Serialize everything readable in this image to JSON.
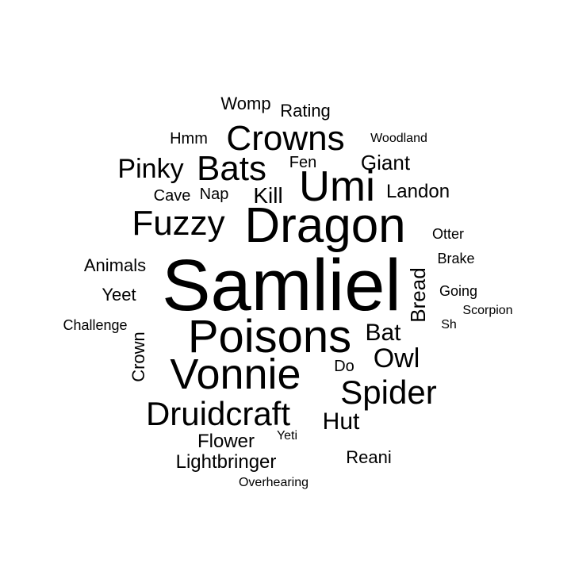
{
  "words": [
    {
      "text": "Samliel",
      "weight": 100
    },
    {
      "text": "Dragon",
      "weight": 78
    },
    {
      "text": "Poisons",
      "weight": 74
    },
    {
      "text": "Vonnie",
      "weight": 68
    },
    {
      "text": "Umi",
      "weight": 66
    },
    {
      "text": "Crowns",
      "weight": 58
    },
    {
      "text": "Bats",
      "weight": 56
    },
    {
      "text": "Fuzzy",
      "weight": 54
    },
    {
      "text": "Druidcraft",
      "weight": 52
    },
    {
      "text": "Spider",
      "weight": 52
    },
    {
      "text": "Pinky",
      "weight": 42
    },
    {
      "text": "Owl",
      "weight": 42
    },
    {
      "text": "Bat",
      "weight": 38
    },
    {
      "text": "Hut",
      "weight": 36
    },
    {
      "text": "Kill",
      "weight": 34
    },
    {
      "text": "Giant",
      "weight": 32
    },
    {
      "text": "Bread",
      "weight": 32
    },
    {
      "text": "Landon",
      "weight": 30
    },
    {
      "text": "Flower",
      "weight": 28
    },
    {
      "text": "Lightbringer",
      "weight": 28
    },
    {
      "text": "Reani",
      "weight": 28
    },
    {
      "text": "Animals",
      "weight": 26
    },
    {
      "text": "Womp",
      "weight": 26
    },
    {
      "text": "Rating",
      "weight": 26
    },
    {
      "text": "Crown",
      "weight": 26
    },
    {
      "text": "Yeet",
      "weight": 26
    },
    {
      "text": "Hmm",
      "weight": 24
    },
    {
      "text": "Cave",
      "weight": 24
    },
    {
      "text": "Nap",
      "weight": 24
    },
    {
      "text": "Fen",
      "weight": 24
    },
    {
      "text": "Do",
      "weight": 24
    },
    {
      "text": "Challenge",
      "weight": 22
    },
    {
      "text": "Brake",
      "weight": 22
    },
    {
      "text": "Going",
      "weight": 22
    },
    {
      "text": "Otter",
      "weight": 22
    },
    {
      "text": "Scorpion",
      "weight": 20
    },
    {
      "text": "Woodland",
      "weight": 20
    },
    {
      "text": "Yeti",
      "weight": 20
    },
    {
      "text": "Overhearing",
      "weight": 20
    },
    {
      "text": "Sh",
      "weight": 20
    }
  ],
  "cloud_style": {
    "background": "#ffffff",
    "text_color": "#000000"
  }
}
